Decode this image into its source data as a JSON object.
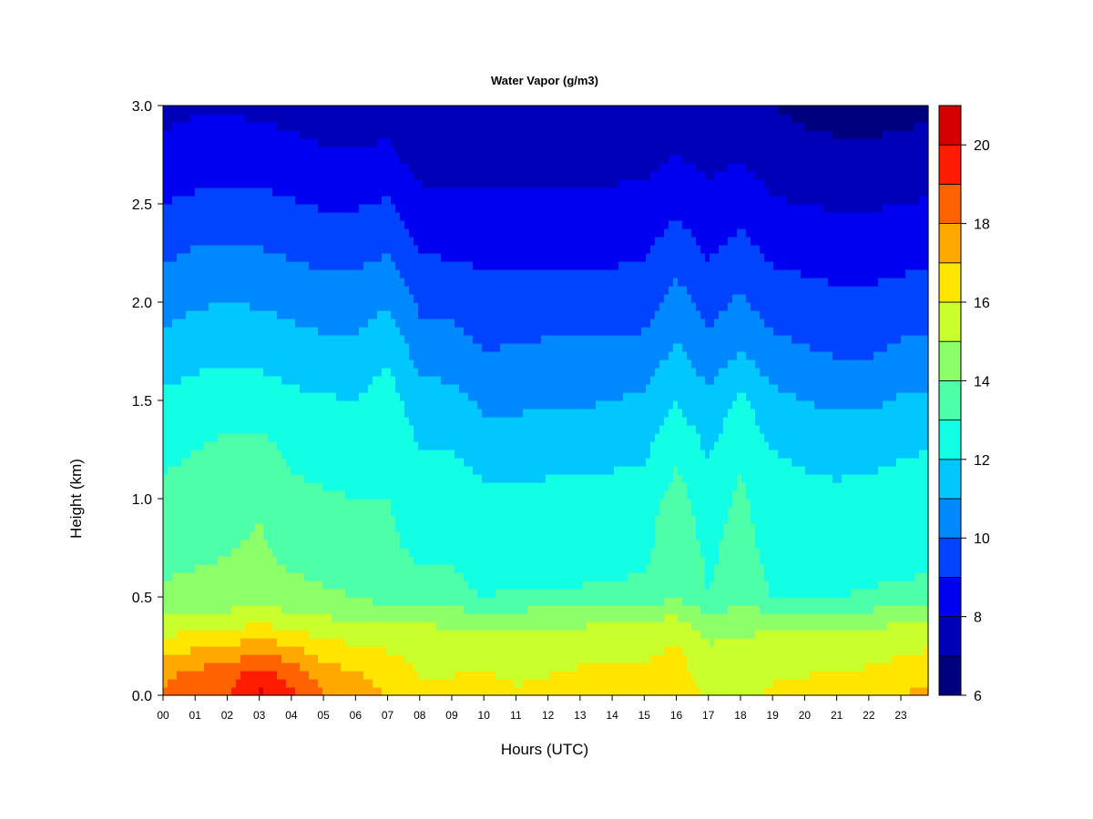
{
  "chart_data": {
    "type": "heatmap",
    "title": "Water Vapor (g/m3)",
    "xlabel": "Hours (UTC)",
    "ylabel": "Height (km)",
    "xlim": [
      0,
      23.85
    ],
    "ylim": [
      0.0,
      3.0
    ],
    "x_ticks": [
      "00",
      "01",
      "02",
      "03",
      "04",
      "05",
      "06",
      "07",
      "08",
      "09",
      "10",
      "11",
      "12",
      "13",
      "14",
      "15",
      "16",
      "17",
      "18",
      "19",
      "20",
      "21",
      "22",
      "23"
    ],
    "y_ticks": [
      "0.0",
      "0.5",
      "1.0",
      "1.5",
      "2.0",
      "2.5",
      "3.0"
    ],
    "colorbar": {
      "min": 6,
      "max": 21,
      "levels": [
        6,
        7,
        8,
        9,
        10,
        11,
        12,
        13,
        14,
        15,
        16,
        17,
        18,
        19,
        20,
        21
      ],
      "tick_labels": [
        "6",
        "8",
        "10",
        "12",
        "14",
        "16",
        "18",
        "20"
      ],
      "colors": [
        "#00007f",
        "#0000b8",
        "#0000f0",
        "#0044ff",
        "#0088ff",
        "#00c8ff",
        "#12ffe5",
        "#4dffa8",
        "#8cff69",
        "#c8ff2d",
        "#ffe600",
        "#ffa800",
        "#ff6200",
        "#ff1c00",
        "#d40000",
        "#850000"
      ]
    },
    "height_km": [
      0.0,
      0.1,
      0.2,
      0.3,
      0.4,
      0.5,
      0.75,
      1.0,
      1.25,
      1.5,
      1.75,
      2.0,
      2.25,
      2.5,
      2.75,
      3.0
    ],
    "hour_utc": [
      0,
      1,
      2,
      3,
      4,
      5,
      6,
      7,
      8,
      9,
      10,
      11,
      12,
      13,
      14,
      15,
      16,
      17,
      18,
      19,
      20,
      21,
      22,
      23,
      23.85
    ],
    "profiles": {
      "0": [
        18.2,
        17.8,
        17.0,
        16.0,
        15.0,
        14.2,
        13.6,
        13.2,
        12.8,
        12.2,
        11.4,
        10.6,
        9.8,
        9.0,
        8.2,
        7.8
      ],
      "1": [
        18.8,
        18.4,
        17.4,
        16.3,
        15.2,
        14.3,
        13.8,
        13.4,
        13.0,
        12.5,
        11.6,
        10.9,
        10.1,
        9.2,
        8.4,
        7.9
      ],
      "2": [
        19.0,
        18.6,
        17.6,
        16.5,
        15.3,
        14.4,
        13.9,
        13.6,
        13.2,
        12.6,
        11.8,
        11.0,
        10.2,
        9.3,
        8.5,
        7.9
      ],
      "3": [
        20.2,
        19.6,
        18.3,
        16.8,
        15.6,
        14.6,
        14.2,
        13.8,
        13.3,
        12.5,
        11.7,
        10.9,
        10.1,
        9.3,
        8.4,
        7.8
      ],
      "4": [
        19.2,
        18.7,
        17.6,
        16.4,
        15.2,
        14.4,
        13.6,
        13.2,
        12.8,
        12.2,
        11.5,
        10.7,
        9.9,
        9.1,
        8.3,
        7.7
      ],
      "5": [
        18.0,
        17.6,
        16.8,
        15.9,
        15.0,
        14.2,
        13.4,
        13.1,
        12.7,
        12.1,
        11.3,
        10.5,
        9.7,
        8.9,
        8.1,
        7.6
      ],
      "6": [
        17.6,
        17.2,
        16.4,
        15.7,
        14.8,
        14.0,
        13.4,
        13.0,
        12.6,
        12.0,
        11.3,
        10.5,
        9.7,
        8.9,
        8.1,
        7.5
      ],
      "7": [
        17.0,
        16.6,
        16.2,
        15.5,
        14.6,
        13.6,
        13.2,
        13.0,
        12.9,
        12.5,
        11.8,
        10.9,
        10.0,
        9.1,
        8.2,
        7.5
      ],
      "8": [
        16.2,
        16.0,
        15.8,
        15.4,
        14.8,
        13.4,
        12.8,
        12.5,
        12.0,
        11.4,
        10.6,
        9.8,
        9.0,
        8.3,
        7.6,
        7.2
      ],
      "9": [
        16.3,
        16.0,
        15.7,
        15.3,
        14.6,
        13.2,
        12.9,
        12.6,
        12.0,
        11.3,
        10.5,
        9.7,
        8.9,
        8.2,
        7.6,
        7.2
      ],
      "10": [
        16.5,
        16.1,
        15.7,
        15.3,
        14.4,
        13.0,
        12.6,
        12.2,
        11.6,
        10.8,
        10.0,
        9.4,
        8.8,
        8.2,
        7.6,
        7.2
      ],
      "11": [
        16.1,
        15.9,
        15.6,
        15.3,
        14.5,
        13.1,
        12.6,
        12.2,
        11.5,
        10.8,
        10.1,
        9.4,
        8.8,
        8.2,
        7.6,
        7.2
      ],
      "12": [
        16.2,
        16.0,
        15.7,
        15.4,
        14.6,
        13.1,
        12.6,
        12.3,
        11.6,
        10.9,
        10.2,
        9.5,
        8.8,
        8.2,
        7.6,
        7.1
      ],
      "13": [
        16.6,
        16.2,
        15.8,
        15.4,
        14.6,
        13.1,
        12.7,
        12.3,
        11.6,
        10.9,
        10.2,
        9.4,
        8.8,
        8.2,
        7.6,
        7.1
      ],
      "14": [
        16.5,
        16.2,
        15.9,
        15.6,
        14.8,
        13.1,
        12.8,
        12.4,
        11.7,
        11.0,
        10.2,
        9.5,
        8.8,
        8.2,
        7.7,
        7.2
      ],
      "15": [
        16.4,
        16.1,
        15.9,
        15.6,
        14.9,
        13.2,
        12.8,
        12.6,
        11.8,
        11.2,
        10.3,
        9.6,
        8.9,
        8.3,
        7.7,
        7.2
      ],
      "16": [
        16.8,
        16.5,
        16.3,
        15.8,
        15.0,
        14.0,
        13.6,
        13.4,
        12.8,
        12.0,
        11.2,
        10.4,
        9.6,
        8.8,
        8.0,
        7.4
      ],
      "17": [
        15.8,
        15.5,
        15.2,
        14.9,
        14.2,
        13.0,
        12.8,
        12.5,
        11.9,
        11.2,
        10.4,
        9.6,
        8.9,
        8.3,
        7.7,
        7.2
      ],
      "18": [
        15.6,
        15.4,
        15.2,
        15.0,
        14.5,
        13.6,
        13.4,
        13.2,
        12.8,
        12.2,
        11.0,
        10.2,
        9.4,
        8.6,
        7.9,
        7.3
      ],
      "19": [
        16.2,
        15.9,
        15.6,
        15.2,
        14.4,
        13.0,
        12.6,
        12.4,
        12.0,
        11.3,
        10.3,
        9.5,
        8.8,
        8.1,
        7.5,
        7.0
      ],
      "20": [
        16.3,
        16.0,
        15.7,
        15.3,
        14.4,
        13.0,
        12.6,
        12.3,
        11.8,
        11.0,
        10.1,
        9.4,
        8.7,
        8.0,
        7.3,
        6.8
      ],
      "21": [
        16.4,
        16.1,
        15.7,
        15.3,
        14.4,
        13.0,
        12.5,
        12.2,
        11.7,
        10.8,
        9.9,
        9.2,
        8.6,
        7.9,
        7.2,
        6.7
      ],
      "22": [
        16.5,
        16.2,
        15.8,
        15.4,
        14.5,
        13.1,
        12.6,
        12.3,
        11.7,
        10.8,
        9.9,
        9.2,
        8.6,
        7.9,
        7.2,
        6.6
      ],
      "23": [
        16.9,
        16.5,
        16.0,
        15.5,
        14.7,
        13.2,
        12.6,
        12.4,
        11.9,
        11.1,
        10.2,
        9.4,
        8.7,
        8.0,
        7.3,
        6.7
      ],
      "23.85": [
        17.4,
        16.8,
        16.2,
        15.6,
        14.8,
        13.3,
        12.7,
        12.5,
        12.0,
        11.2,
        10.3,
        9.5,
        8.8,
        8.1,
        7.4,
        6.8
      ]
    }
  }
}
